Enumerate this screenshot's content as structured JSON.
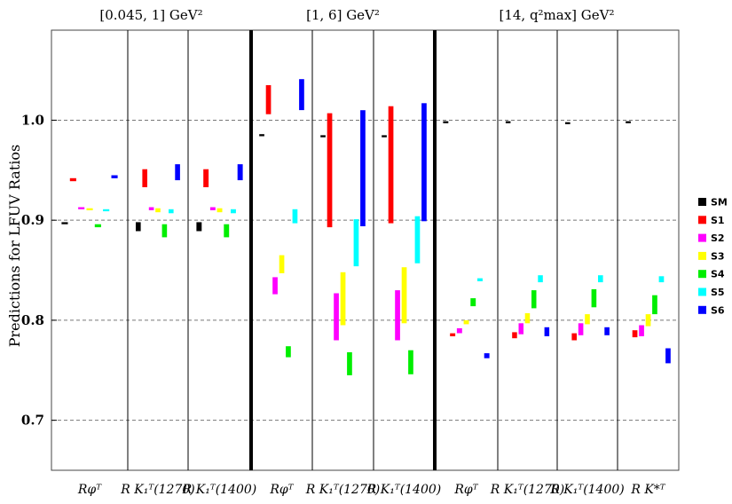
{
  "chart_data": {
    "type": "bar",
    "ylabel": "Predictions for LFUV Ratios",
    "ylim": [
      0.65,
      1.09
    ],
    "yticks": [
      "0.7",
      "0.8",
      "0.9",
      "1.0"
    ],
    "grid": "dashed horizontal at 0.7, 0.8, 0.9, 1.0",
    "legend": {
      "placement": "right",
      "entries": [
        {
          "name": "SM",
          "color": "#000000"
        },
        {
          "name": "S1",
          "color": "#ff0000"
        },
        {
          "name": "S2",
          "color": "#ff00ff"
        },
        {
          "name": "S3",
          "color": "#ffff00"
        },
        {
          "name": "S4",
          "color": "#00ee00"
        },
        {
          "name": "S5",
          "color": "#00ffff"
        },
        {
          "name": "S6",
          "color": "#0000ff"
        }
      ]
    },
    "regions": [
      {
        "title": "[0.045, 1] GeV²",
        "columns": [
          {
            "label": "Rφᵀ",
            "ranges": {
              "SM": [
                0.896,
                0.898
              ],
              "S1": [
                0.939,
                0.942
              ],
              "S2": [
                0.911,
                0.913
              ],
              "S3": [
                0.91,
                0.912
              ],
              "S4": [
                0.893,
                0.896
              ],
              "S5": [
                0.909,
                0.911
              ],
              "S6": [
                0.942,
                0.945
              ]
            }
          },
          {
            "label": "R K₁ᵀ(1270)",
            "ranges": {
              "SM": [
                0.889,
                0.898
              ],
              "S1": [
                0.933,
                0.951
              ],
              "S2": [
                0.91,
                0.913
              ],
              "S3": [
                0.908,
                0.912
              ],
              "S4": [
                0.883,
                0.896
              ],
              "S5": [
                0.907,
                0.911
              ],
              "S6": [
                0.94,
                0.956
              ]
            }
          },
          {
            "label": "R K₁ᵀ(1400)",
            "ranges": {
              "SM": [
                0.889,
                0.898
              ],
              "S1": [
                0.933,
                0.951
              ],
              "S2": [
                0.91,
                0.913
              ],
              "S3": [
                0.908,
                0.912
              ],
              "S4": [
                0.883,
                0.896
              ],
              "S5": [
                0.907,
                0.911
              ],
              "S6": [
                0.94,
                0.956
              ]
            }
          }
        ]
      },
      {
        "title": "[1, 6] GeV²",
        "columns": [
          {
            "label": "Rφᵀ",
            "ranges": {
              "SM": [
                0.984,
                0.986
              ],
              "S1": [
                1.006,
                1.035
              ],
              "S2": [
                0.826,
                0.843
              ],
              "S3": [
                0.847,
                0.865
              ],
              "S4": [
                0.763,
                0.774
              ],
              "S5": [
                0.897,
                0.911
              ],
              "S6": [
                1.01,
                1.041
              ]
            }
          },
          {
            "label": "R K₁ᵀ(1270)",
            "ranges": {
              "SM": [
                0.983,
                0.985
              ],
              "S1": [
                0.893,
                1.007
              ],
              "S2": [
                0.78,
                0.827
              ],
              "S3": [
                0.795,
                0.848
              ],
              "S4": [
                0.745,
                0.768
              ],
              "S5": [
                0.854,
                0.901
              ],
              "S6": [
                0.894,
                1.01
              ]
            }
          },
          {
            "label": "R K₁ᵀ(1400)",
            "ranges": {
              "SM": [
                0.983,
                0.985
              ],
              "S1": [
                0.897,
                1.014
              ],
              "S2": [
                0.78,
                0.83
              ],
              "S3": [
                0.797,
                0.853
              ],
              "S4": [
                0.746,
                0.77
              ],
              "S5": [
                0.857,
                0.904
              ],
              "S6": [
                0.899,
                1.017
              ]
            }
          }
        ]
      },
      {
        "title": "[14, q²max] GeV²",
        "columns": [
          {
            "label": "Rφᵀ",
            "ranges": {
              "SM": [
                0.997,
                0.999
              ],
              "S1": [
                0.784,
                0.787
              ],
              "S2": [
                0.787,
                0.792
              ],
              "S3": [
                0.796,
                0.8
              ],
              "S4": [
                0.814,
                0.822
              ],
              "S5": [
                0.839,
                0.842
              ],
              "S6": [
                0.762,
                0.767
              ]
            }
          },
          {
            "label": "R K₁ᵀ(1270)",
            "ranges": {
              "SM": [
                0.997,
                0.999
              ],
              "S1": [
                0.782,
                0.788
              ],
              "S2": [
                0.786,
                0.797
              ],
              "S3": [
                0.797,
                0.807
              ],
              "S4": [
                0.812,
                0.83
              ],
              "S5": [
                0.838,
                0.845
              ],
              "S6": [
                0.784,
                0.793
              ]
            }
          },
          {
            "label": "R K₁ᵀ(1400)",
            "ranges": {
              "SM": [
                0.996,
                0.998
              ],
              "S1": [
                0.78,
                0.787
              ],
              "S2": [
                0.785,
                0.797
              ],
              "S3": [
                0.796,
                0.806
              ],
              "S4": [
                0.813,
                0.831
              ],
              "S5": [
                0.838,
                0.845
              ],
              "S6": [
                0.785,
                0.793
              ]
            }
          },
          {
            "label": "R K*ᵀ",
            "ranges": {
              "SM": [
                0.997,
                0.999
              ],
              "S1": [
                0.783,
                0.79
              ],
              "S2": [
                0.784,
                0.795
              ],
              "S3": [
                0.794,
                0.806
              ],
              "S4": [
                0.806,
                0.825
              ],
              "S5": [
                0.838,
                0.844
              ],
              "S6": [
                0.757,
                0.772
              ]
            }
          }
        ]
      }
    ]
  }
}
